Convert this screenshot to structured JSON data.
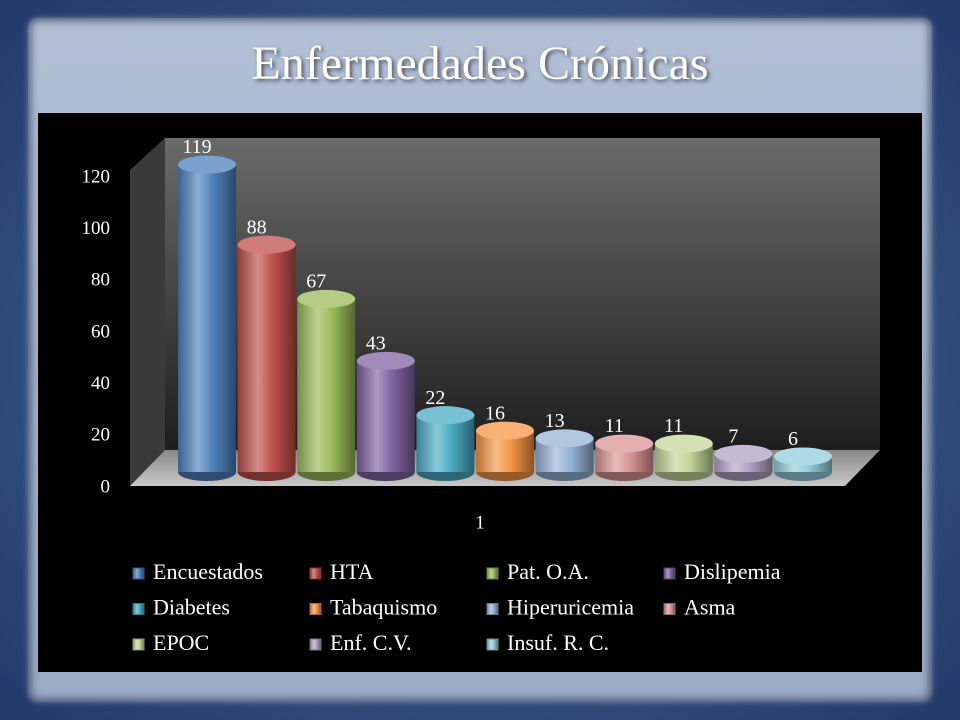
{
  "chart_data": {
    "type": "bar3d",
    "title": "Enfermedades Crónicas",
    "categories": [
      "1"
    ],
    "series": [
      {
        "name": "Encuestados",
        "color": "#4f81bd",
        "values": [
          119
        ]
      },
      {
        "name": "HTA",
        "color": "#c0504d",
        "values": [
          88
        ]
      },
      {
        "name": "Pat. O.A.",
        "color": "#9bbb59",
        "values": [
          67
        ]
      },
      {
        "name": "Dislipemia",
        "color": "#8064a2",
        "values": [
          43
        ]
      },
      {
        "name": "Diabetes",
        "color": "#4bacc6",
        "values": [
          22
        ]
      },
      {
        "name": "Tabaquismo",
        "color": "#f79646",
        "values": [
          16
        ]
      },
      {
        "name": "Hiperuricemia",
        "color": "#95b3d7",
        "values": [
          13
        ]
      },
      {
        "name": "Asma",
        "color": "#d99694",
        "values": [
          11
        ]
      },
      {
        "name": "EPOC",
        "color": "#c3d69b",
        "values": [
          11
        ]
      },
      {
        "name": "Enf. C.V.",
        "color": "#b3a2c7",
        "values": [
          7
        ]
      },
      {
        "name": "Insuf. R. C.",
        "color": "#93cddd",
        "values": [
          6
        ]
      }
    ],
    "ylim": [
      0,
      120
    ],
    "yticks": [
      0,
      20,
      40,
      60,
      80,
      100,
      120
    ],
    "legend": "bottom"
  }
}
